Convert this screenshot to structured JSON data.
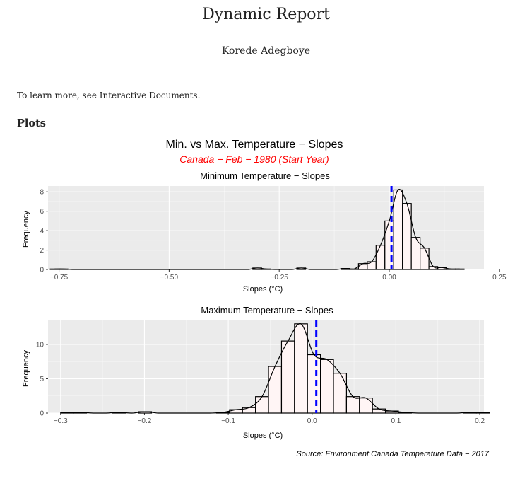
{
  "document": {
    "title": "Dynamic Report",
    "author": "Korede Adegboye",
    "intro": "To learn more, see Interactive Documents.",
    "section_heading": "Plots"
  },
  "figure": {
    "title": "Min. vs Max. Temperature −  Slopes",
    "subtitle": "Canada − Feb − 1980 (Start Year)",
    "caption": "Source: Environment Canada Temperature Data − 2017",
    "subtitle_color": "#ff0000",
    "panel_bg": "#ebebeb",
    "bar_fill": "#fff5f5",
    "bar_stroke": "#000000",
    "vline_color": "#0000ff"
  },
  "chart_data": [
    {
      "type": "bar",
      "title": "Minimum Temperature −  Slopes",
      "xlabel": "Slopes (°C)",
      "ylabel": "Frequency",
      "xlim": [
        -0.775,
        0.215
      ],
      "ylim": [
        0,
        8.6
      ],
      "xticks": [
        -0.75,
        -0.5,
        -0.25,
        0.0,
        0.25
      ],
      "xtick_labels": [
        "−0.75",
        "−0.50",
        "−0.25",
        "0.00",
        "0.25"
      ],
      "yticks": [
        0,
        2,
        4,
        6,
        8
      ],
      "ytick_labels": [
        "0",
        "2",
        "4",
        "6",
        "8"
      ],
      "bin_width": 0.02,
      "bin_start": -0.77,
      "counts": [
        0.05,
        0.05,
        0,
        0,
        0,
        0,
        0,
        0,
        0,
        0,
        0,
        0,
        0,
        0,
        0,
        0,
        0,
        0,
        0,
        0,
        0,
        0,
        0,
        0.15,
        0.05,
        0,
        0,
        0,
        0.15,
        0,
        0,
        0,
        0,
        0.1,
        0.05,
        0.6,
        0.8,
        2.5,
        5,
        8.2,
        6.8,
        3.3,
        2.2,
        0.3,
        0.2,
        0.05,
        0.05
      ],
      "mean_line": 0.005,
      "grid": true
    },
    {
      "type": "bar",
      "title": "Maximum Temperature −  Slopes",
      "xlabel": "Slopes (°C)",
      "ylabel": "Frequency",
      "xlim": [
        -0.315,
        0.205
      ],
      "ylim": [
        0,
        13.5
      ],
      "xticks": [
        -0.3,
        -0.2,
        -0.1,
        0.0,
        0.1,
        0.2
      ],
      "xtick_labels": [
        "−0.3",
        "−0.2",
        "−0.1",
        "0.0",
        "0.1",
        "0.2"
      ],
      "yticks": [
        0,
        5,
        10
      ],
      "ytick_labels": [
        "0",
        "5",
        "10"
      ],
      "bin_width": 0.0155,
      "bin_start": -0.3,
      "counts": [
        0.1,
        0.1,
        0,
        0,
        0.1,
        0,
        0.2,
        0,
        0,
        0,
        0,
        0,
        0.1,
        0.5,
        0.8,
        2.4,
        6.8,
        10.5,
        13,
        8.5,
        7.8,
        5.8,
        2.4,
        2.2,
        0.6,
        0.3,
        0.1,
        0,
        0,
        0,
        0,
        0.1,
        0.1
      ],
      "mean_line": 0.005,
      "grid": true
    }
  ]
}
